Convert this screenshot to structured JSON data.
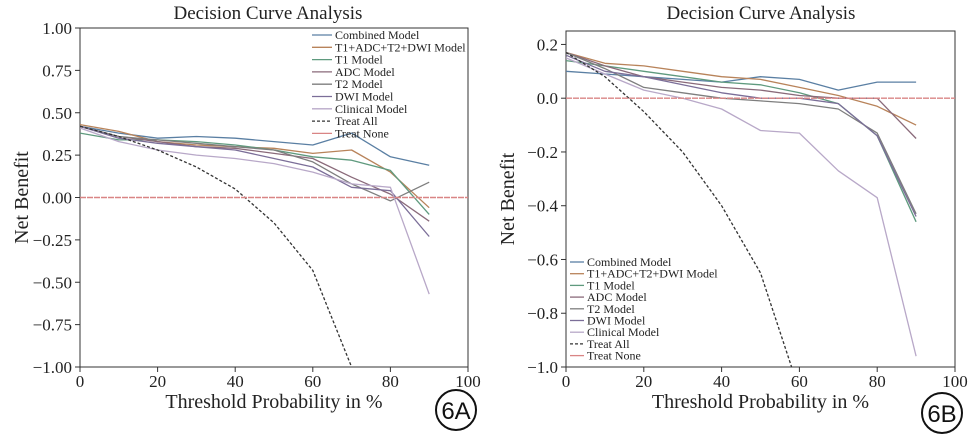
{
  "colors": {
    "Combined Model": "#5a7fa3",
    "T1+ADC+T2+DWI Model": "#b8835a",
    "T1 Model": "#5f9a7e",
    "ADC Model": "#8a6a7a",
    "T2 Model": "#7e7e7e",
    "DWI Model": "#7b6e98",
    "Clinical Model": "#b8a8c8",
    "Treat All": "#333333",
    "Treat None": "#d98585"
  },
  "chart_data": [
    {
      "type": "line",
      "title": "Decision Curve Analysis",
      "xlabel": "Threshold Probability in %",
      "ylabel": "Net Benefit",
      "xlim": [
        0,
        100
      ],
      "ylim": [
        -1.0,
        1.0
      ],
      "xticks": [
        0,
        20,
        40,
        60,
        80,
        100
      ],
      "yticks": [
        1.0,
        0.75,
        0.5,
        0.25,
        0.0,
        -0.25,
        -0.5,
        -0.75,
        -1.0
      ],
      "ytick_labels": [
        "1.00",
        "0.75",
        "0.50",
        "0.25",
        "0.00",
        "−0.25",
        "−0.50",
        "−0.75",
        "−1.00"
      ],
      "xtick_labels": [
        "0",
        "20",
        "40",
        "60",
        "80",
        "100"
      ],
      "legend_position": "top-right",
      "badge": "6A",
      "legend": [
        "Combined Model",
        "T1+ADC+T2+DWI Model",
        "T1 Model",
        "ADC Model",
        "T2 Model",
        "DWI Model",
        "Clinical Model",
        "Treat All",
        "Treat None"
      ],
      "series": [
        {
          "name": "Combined Model",
          "x": [
            0,
            10,
            20,
            30,
            40,
            50,
            60,
            70,
            80,
            90
          ],
          "y": [
            0.42,
            0.38,
            0.35,
            0.36,
            0.35,
            0.33,
            0.31,
            0.38,
            0.24,
            0.19
          ]
        },
        {
          "name": "T1+ADC+T2+DWI Model",
          "x": [
            0,
            10,
            20,
            30,
            40,
            50,
            60,
            70,
            80,
            90
          ],
          "y": [
            0.43,
            0.39,
            0.33,
            0.31,
            0.3,
            0.29,
            0.26,
            0.28,
            0.15,
            -0.06
          ]
        },
        {
          "name": "T1 Model",
          "x": [
            0,
            10,
            20,
            30,
            40,
            50,
            60,
            70,
            80,
            90
          ],
          "y": [
            0.38,
            0.34,
            0.34,
            0.33,
            0.31,
            0.28,
            0.24,
            0.22,
            0.16,
            -0.1
          ]
        },
        {
          "name": "ADC Model",
          "x": [
            0,
            10,
            20,
            30,
            40,
            50,
            60,
            70,
            80,
            90
          ],
          "y": [
            0.42,
            0.36,
            0.33,
            0.3,
            0.29,
            0.26,
            0.23,
            0.12,
            0.02,
            -0.14
          ]
        },
        {
          "name": "T2 Model",
          "x": [
            0,
            10,
            20,
            30,
            40,
            50,
            60,
            70,
            80,
            90
          ],
          "y": [
            0.42,
            0.36,
            0.34,
            0.32,
            0.3,
            0.28,
            0.21,
            0.08,
            -0.02,
            0.09
          ]
        },
        {
          "name": "DWI Model",
          "x": [
            0,
            10,
            20,
            30,
            40,
            50,
            60,
            70,
            80,
            90
          ],
          "y": [
            0.42,
            0.35,
            0.32,
            0.3,
            0.28,
            0.23,
            0.18,
            0.06,
            0.04,
            -0.23
          ]
        },
        {
          "name": "Clinical Model",
          "x": [
            0,
            10,
            20,
            30,
            40,
            50,
            60,
            70,
            80,
            90
          ],
          "y": [
            0.41,
            0.33,
            0.28,
            0.25,
            0.23,
            0.2,
            0.15,
            0.08,
            0.06,
            -0.57
          ]
        },
        {
          "name": "Treat All",
          "dashed": true,
          "x": [
            0,
            10,
            20,
            30,
            40,
            50,
            60,
            70
          ],
          "y": [
            0.42,
            0.36,
            0.28,
            0.18,
            0.05,
            -0.15,
            -0.43,
            -1.0
          ]
        },
        {
          "name": "Treat None",
          "x": [
            0,
            100
          ],
          "y": [
            0.0,
            0.0
          ]
        }
      ]
    },
    {
      "type": "line",
      "title": "Decision Curve Analysis",
      "xlabel": "Threshold Probability in %",
      "ylabel": "Net Benefit",
      "xlim": [
        0,
        100
      ],
      "ylim": [
        -1.0,
        0.25
      ],
      "xticks": [
        0,
        20,
        40,
        60,
        80,
        100
      ],
      "yticks": [
        0.2,
        0.0,
        -0.2,
        -0.4,
        -0.6,
        -0.8,
        -1.0
      ],
      "ytick_labels": [
        "0.2",
        "0.0",
        "−0.2",
        "−0.4",
        "−0.6",
        "−0.8",
        "−1.0"
      ],
      "xtick_labels": [
        "0",
        "20",
        "40",
        "60",
        "80",
        "100"
      ],
      "legend_position": "bottom-left",
      "badge": "6B",
      "legend": [
        "Combined Model",
        "T1+ADC+T2+DWI Model",
        "T1 Model",
        "ADC Model",
        "T2 Model",
        "DWI Model",
        "Clinical Model",
        "Treat All",
        "Treat None"
      ],
      "series": [
        {
          "name": "Combined Model",
          "x": [
            0,
            10,
            20,
            30,
            40,
            50,
            60,
            70,
            80,
            90
          ],
          "y": [
            0.1,
            0.09,
            0.08,
            0.07,
            0.06,
            0.08,
            0.07,
            0.03,
            0.06,
            0.06
          ]
        },
        {
          "name": "T1+ADC+T2+DWI Model",
          "x": [
            0,
            10,
            20,
            30,
            40,
            50,
            60,
            70,
            80,
            90
          ],
          "y": [
            0.17,
            0.13,
            0.12,
            0.1,
            0.08,
            0.07,
            0.04,
            0.01,
            -0.03,
            -0.1
          ]
        },
        {
          "name": "T1 Model",
          "x": [
            0,
            10,
            20,
            30,
            40,
            50,
            60,
            70,
            80,
            90
          ],
          "y": [
            0.14,
            0.12,
            0.1,
            0.08,
            0.06,
            0.05,
            0.02,
            -0.02,
            -0.14,
            -0.46
          ]
        },
        {
          "name": "ADC Model",
          "x": [
            0,
            10,
            20,
            30,
            40,
            50,
            60,
            70,
            80,
            90
          ],
          "y": [
            0.17,
            0.12,
            0.08,
            0.06,
            0.04,
            0.03,
            0.01,
            0.0,
            0.0,
            -0.15
          ]
        },
        {
          "name": "T2 Model",
          "x": [
            0,
            10,
            20,
            30,
            40,
            50,
            60,
            70,
            80,
            90
          ],
          "y": [
            0.17,
            0.11,
            0.04,
            0.02,
            0.0,
            -0.01,
            -0.02,
            -0.04,
            -0.13,
            -0.43
          ]
        },
        {
          "name": "DWI Model",
          "x": [
            0,
            10,
            20,
            30,
            40,
            50,
            60,
            70,
            80,
            90
          ],
          "y": [
            0.16,
            0.1,
            0.08,
            0.05,
            0.02,
            0.0,
            0.0,
            -0.02,
            -0.14,
            -0.44
          ]
        },
        {
          "name": "Clinical Model",
          "x": [
            0,
            10,
            20,
            30,
            40,
            50,
            60,
            70,
            80,
            90
          ],
          "y": [
            0.15,
            0.09,
            0.03,
            0.0,
            -0.04,
            -0.12,
            -0.13,
            -0.27,
            -0.37,
            -0.96
          ]
        },
        {
          "name": "Treat All",
          "dashed": true,
          "x": [
            0,
            10,
            20,
            30,
            40,
            50,
            58
          ],
          "y": [
            0.17,
            0.08,
            -0.05,
            -0.2,
            -0.4,
            -0.65,
            -1.0
          ]
        },
        {
          "name": "Treat None",
          "x": [
            0,
            100
          ],
          "y": [
            0.0,
            0.0
          ]
        }
      ]
    }
  ]
}
